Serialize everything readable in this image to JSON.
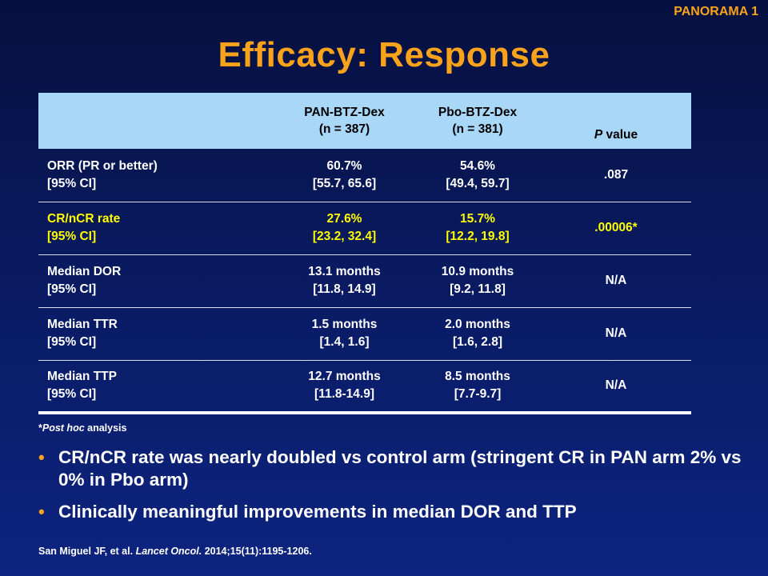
{
  "slide": {
    "tag": "PANORAMA 1",
    "title": "Efficacy: Response"
  },
  "table": {
    "columns": [
      {
        "line1": "PAN-BTZ-Dex",
        "line2": "(n = 387)"
      },
      {
        "line1": "Pbo-BTZ-Dex",
        "line2": "(n = 381)"
      },
      {
        "italic": "P",
        "rest": " value"
      }
    ],
    "rows": [
      {
        "label1": "ORR (PR or better)",
        "label2": "[95% CI]",
        "a1": "60.7%",
        "a2": "[55.7, 65.6]",
        "b1": "54.6%",
        "b2": "[49.4, 59.7]",
        "p": ".087"
      },
      {
        "label1": "CR/nCR rate",
        "label2": "[95% CI]",
        "a1": "27.6%",
        "a2": "[23.2, 32.4]",
        "b1": "15.7%",
        "b2": "[12.2, 19.8]",
        "p": ".00006*"
      },
      {
        "label1": "Median DOR",
        "label2": "[95% CI]",
        "a1": "13.1 months",
        "a2": "[11.8, 14.9]",
        "b1": "10.9 months",
        "b2": "[9.2, 11.8]",
        "p": "N/A"
      },
      {
        "label1": "Median TTR",
        "label2": "[95% CI]",
        "a1": "1.5 months",
        "a2": "[1.4, 1.6]",
        "b1": "2.0 months",
        "b2": "[1.6, 2.8]",
        "p": "N/A"
      },
      {
        "label1": "Median TTP",
        "label2": "[95% CI]",
        "a1": "12.7 months",
        "a2": "[11.8-14.9]",
        "b1": "8.5 months",
        "b2": "[7.7-9.7]",
        "p": "N/A"
      }
    ]
  },
  "footnote": {
    "star": "*",
    "italic": "Post hoc",
    "rest": " analysis"
  },
  "bullets": [
    "CR/nCR rate was nearly doubled vs control arm (stringent CR in PAN arm 2% vs 0% in Pbo arm)",
    "Clinically meaningful improvements in median DOR and TTP"
  ],
  "citation": {
    "authors": "San Miguel JF, et al. ",
    "journal": "Lancet Oncol.",
    "details": " 2014;15(11):1195-1206."
  },
  "colors": {
    "accent": "#f9a31c",
    "highlight": "#ffff00",
    "header_bg": "#a8d7f8",
    "background": "#0a1c66"
  }
}
